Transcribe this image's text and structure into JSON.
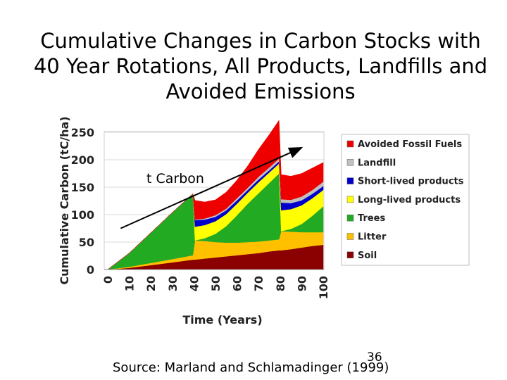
{
  "title_lines": [
    "Cumulative Changes in Carbon Stocks with",
    "40 Year Rotations, All Products, Landfills and",
    "Avoided Emissions"
  ],
  "source": "Source: Marland and Schlamadinger (1999)",
  "slide_number": "36",
  "chart_data": {
    "type": "area",
    "stacked": true,
    "xlabel": "Time (Years)",
    "ylabel": "Cumulative Carbon (tC/ha)",
    "xlim": [
      0,
      100
    ],
    "ylim": [
      0,
      250
    ],
    "x_ticks": [
      0,
      10,
      20,
      30,
      40,
      50,
      60,
      70,
      80,
      90,
      100
    ],
    "y_ticks": [
      0,
      50,
      100,
      150,
      200,
      250
    ],
    "x": [
      0,
      10,
      20,
      30,
      39.5,
      40.5,
      45,
      50,
      55,
      60,
      65,
      70,
      75,
      79.5,
      80.5,
      85,
      90,
      95,
      100
    ],
    "series": [
      {
        "name": "Soil",
        "color": "#8b0000",
        "values": [
          0,
          3,
          8,
          13,
          18,
          18,
          20,
          22,
          24,
          26,
          28,
          30,
          33,
          35,
          35,
          37,
          40,
          43,
          45
        ]
      },
      {
        "name": "Litter",
        "color": "#ffc000",
        "values": [
          0,
          2,
          4,
          6,
          8,
          35,
          32,
          28,
          25,
          23,
          22,
          21,
          20,
          20,
          35,
          32,
          28,
          25,
          23
        ]
      },
      {
        "name": "Trees",
        "color": "#22aa22",
        "values": [
          0,
          25,
          55,
          85,
          112,
          0,
          5,
          15,
          30,
          50,
          70,
          88,
          105,
          120,
          0,
          5,
          15,
          30,
          47
        ]
      },
      {
        "name": "Long-lived products",
        "color": "#ffff00",
        "values": [
          0,
          0,
          0,
          0,
          0,
          25,
          24,
          23,
          22,
          21,
          20,
          20,
          19,
          18,
          38,
          36,
          34,
          32,
          30
        ]
      },
      {
        "name": "Short-lived products",
        "color": "#0000cc",
        "values": [
          0,
          0,
          0,
          0,
          0,
          12,
          10,
          8,
          7,
          6,
          5,
          5,
          4,
          4,
          14,
          11,
          9,
          8,
          7
        ]
      },
      {
        "name": "Landfill",
        "color": "#c0c0c0",
        "values": [
          0,
          0,
          0,
          0,
          0,
          1,
          2,
          3,
          3,
          4,
          4,
          5,
          5,
          5,
          6,
          6,
          7,
          7,
          8
        ]
      },
      {
        "name": "Avoided Fossil Fuels",
        "color": "#ee0000",
        "values": [
          0,
          0,
          0,
          0,
          0,
          35,
          30,
          28,
          30,
          33,
          40,
          50,
          60,
          70,
          45,
          43,
          42,
          40,
          35
        ]
      }
    ],
    "legend_order": [
      "Avoided Fossil Fuels",
      "Landfill",
      "Short-lived products",
      "Long-lived products",
      "Trees",
      "Litter",
      "Soil"
    ],
    "legend_position": "right",
    "grid": "horizontal",
    "annotations": [
      {
        "text": "t Carbon"
      },
      {
        "type": "arrow",
        "from": [
          6,
          75
        ],
        "to": [
          90,
          222
        ]
      }
    ]
  }
}
